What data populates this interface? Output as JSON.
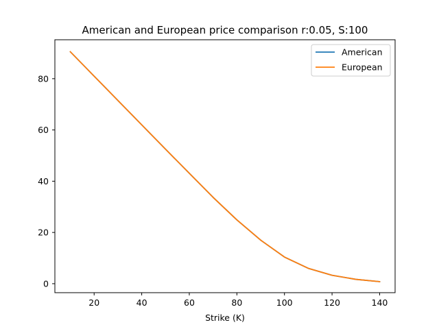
{
  "chart_data": {
    "type": "line",
    "title": "American and European price comparison r:0.05, S:100",
    "xlabel": "Strike (K)",
    "ylabel": "",
    "xlim": [
      3.5,
      146.5
    ],
    "ylim": [
      -3.5,
      95.2
    ],
    "x_ticks": [
      20,
      40,
      60,
      80,
      100,
      120,
      140
    ],
    "y_ticks": [
      0,
      20,
      40,
      60,
      80
    ],
    "grid": false,
    "legend_position": "top-right",
    "x": [
      10,
      20,
      30,
      40,
      50,
      60,
      70,
      80,
      90,
      100,
      110,
      120,
      130,
      140
    ],
    "series": [
      {
        "name": "American",
        "color": "#1f77b4",
        "values": [
          90.5,
          81.0,
          71.5,
          62.0,
          52.5,
          43.1,
          33.7,
          24.9,
          17.0,
          10.4,
          6.0,
          3.3,
          1.7,
          0.8
        ]
      },
      {
        "name": "European",
        "color": "#ff7f0e",
        "values": [
          90.5,
          81.0,
          71.5,
          62.0,
          52.5,
          43.1,
          33.7,
          24.9,
          17.0,
          10.4,
          6.0,
          3.3,
          1.7,
          0.8
        ]
      }
    ]
  }
}
